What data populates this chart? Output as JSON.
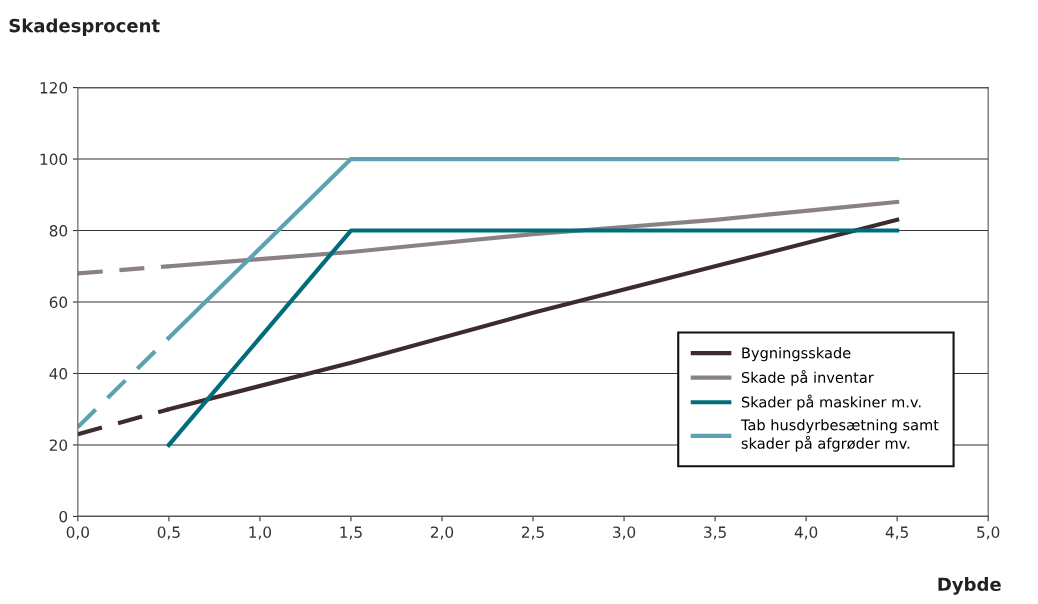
{
  "chart_data": {
    "type": "line",
    "ylabel": "Skadesprocent",
    "xlabel": "Dybde",
    "xlim": [
      0,
      5
    ],
    "xticks": [
      {
        "value": 0,
        "label": "0,0"
      },
      {
        "value": 0.5,
        "label": "0,5"
      },
      {
        "value": 1,
        "label": "1,0"
      },
      {
        "value": 1.5,
        "label": "1,5"
      },
      {
        "value": 2,
        "label": "2,0"
      },
      {
        "value": 2.5,
        "label": "2,5"
      },
      {
        "value": 3,
        "label": "3,0"
      },
      {
        "value": 3.5,
        "label": "3,5"
      },
      {
        "value": 4,
        "label": "4,0"
      },
      {
        "value": 4.5,
        "label": "4,5"
      },
      {
        "value": 5,
        "label": "5,0"
      }
    ],
    "ylim": [
      0,
      120
    ],
    "yticks": [
      0,
      20,
      40,
      60,
      80,
      100,
      120
    ],
    "grid": "y",
    "legend": "bottom right",
    "marker": "none",
    "series": [
      {
        "color": "#3d2b2e",
        "line_style": "dashed",
        "x": [
          0,
          0.5
        ],
        "values": [
          23,
          30
        ]
      },
      {
        "color": "#8a8184",
        "line_style": "dashed",
        "x": [
          0,
          0.5
        ],
        "values": [
          68,
          70
        ]
      },
      {
        "color": "#5ba3b0",
        "line_style": "dashed",
        "x": [
          0,
          0.5
        ],
        "values": [
          25,
          50
        ]
      },
      {
        "name": "Bygningsskade",
        "color": "#3d2b2e",
        "line_style": "solid",
        "x": [
          0.5,
          1.5,
          2.5,
          3.5,
          4.5
        ],
        "values": [
          30,
          43,
          57,
          70,
          83
        ]
      },
      {
        "name": "Skade på inventar",
        "color": "#8a8184",
        "line_style": "solid",
        "x": [
          0.5,
          1,
          1.5,
          2,
          2.5,
          3,
          3.5,
          4,
          4.5
        ],
        "values": [
          70,
          72,
          74,
          76.5,
          79,
          81,
          83,
          85.5,
          88
        ]
      },
      {
        "name": "Skader på maskiner m.v.",
        "color": "#006e7a",
        "line_style": "solid",
        "x": [
          0.5,
          1.5,
          4.5
        ],
        "values": [
          20,
          80,
          80
        ]
      },
      {
        "name": "Tab husdyrbesætning samt\nskader på afgrøder mv.",
        "color": "#5ba3b0",
        "line_style": "solid",
        "x": [
          0.5,
          1.5,
          4.5
        ],
        "values": [
          50,
          100,
          100
        ]
      }
    ]
  }
}
